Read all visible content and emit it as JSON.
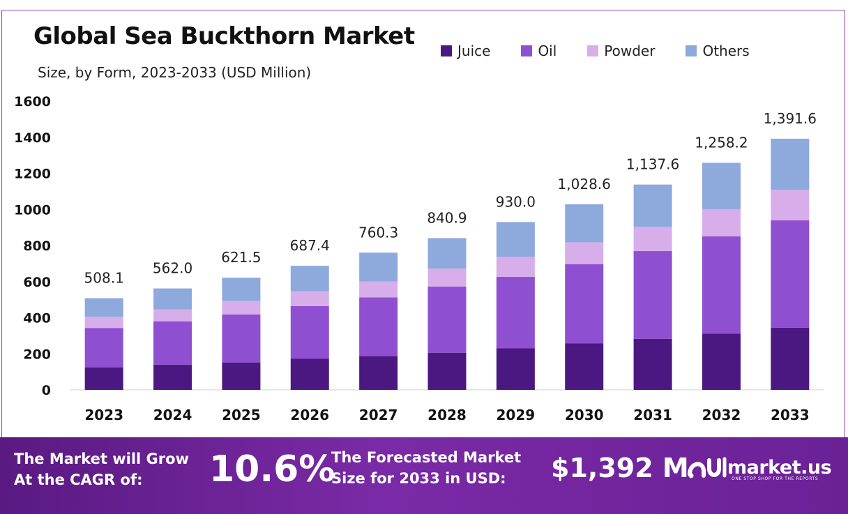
{
  "header": {
    "title": "Global Sea Buckthorn Market",
    "subtitle": "Size, by Form, 2023-2033 (USD Million)"
  },
  "chart_data": {
    "type": "bar",
    "stacked": true,
    "categories": [
      "2023",
      "2024",
      "2025",
      "2026",
      "2027",
      "2028",
      "2029",
      "2030",
      "2031",
      "2032",
      "2033"
    ],
    "series": [
      {
        "name": "Juice",
        "color": "#4b1882",
        "values": [
          125,
          140,
          152,
          172,
          187,
          206,
          230,
          257,
          283,
          311,
          345
        ]
      },
      {
        "name": "Oil",
        "color": "#8f4fd1",
        "values": [
          218,
          240,
          266,
          292,
          325,
          366,
          396,
          440,
          486,
          540,
          595
        ]
      },
      {
        "name": "Powder",
        "color": "#d7aeea",
        "values": [
          62,
          66,
          74,
          82,
          88,
          100,
          112,
          120,
          134,
          150,
          168
        ]
      },
      {
        "name": "Others",
        "color": "#8ea9db",
        "values": [
          103.1,
          116.0,
          129.5,
          141.4,
          160.3,
          168.9,
          192.0,
          211.6,
          234.6,
          257.2,
          283.6
        ]
      }
    ],
    "totals": [
      508.1,
      562.0,
      621.5,
      687.4,
      760.3,
      840.9,
      930.0,
      1028.6,
      1137.6,
      1258.2,
      1391.6
    ],
    "total_labels": [
      "508.1",
      "562.0",
      "621.5",
      "687.4",
      "760.3",
      "840.9",
      "930.0",
      "1,028.6",
      "1,137.6",
      "1,258.2",
      "1,391.6"
    ],
    "y_ticks": [
      "0",
      "200",
      "400",
      "600",
      "800",
      "1000",
      "1200",
      "1400",
      "1600"
    ],
    "ylim": [
      0,
      1600
    ],
    "legend_position": "top-right",
    "grid": false
  },
  "banner": {
    "cagr_text_line1": "The Market will Grow",
    "cagr_text_line2": "At the CAGR of:",
    "cagr_value": "10.6%",
    "forecast_text_line1": "The Forecasted Market",
    "forecast_text_line2": "Size for 2033 in USD:",
    "forecast_value": "$1,392 M",
    "brand_name": "market.us",
    "brand_tagline": "ONE STOP SHOP FOR THE REPORTS"
  }
}
